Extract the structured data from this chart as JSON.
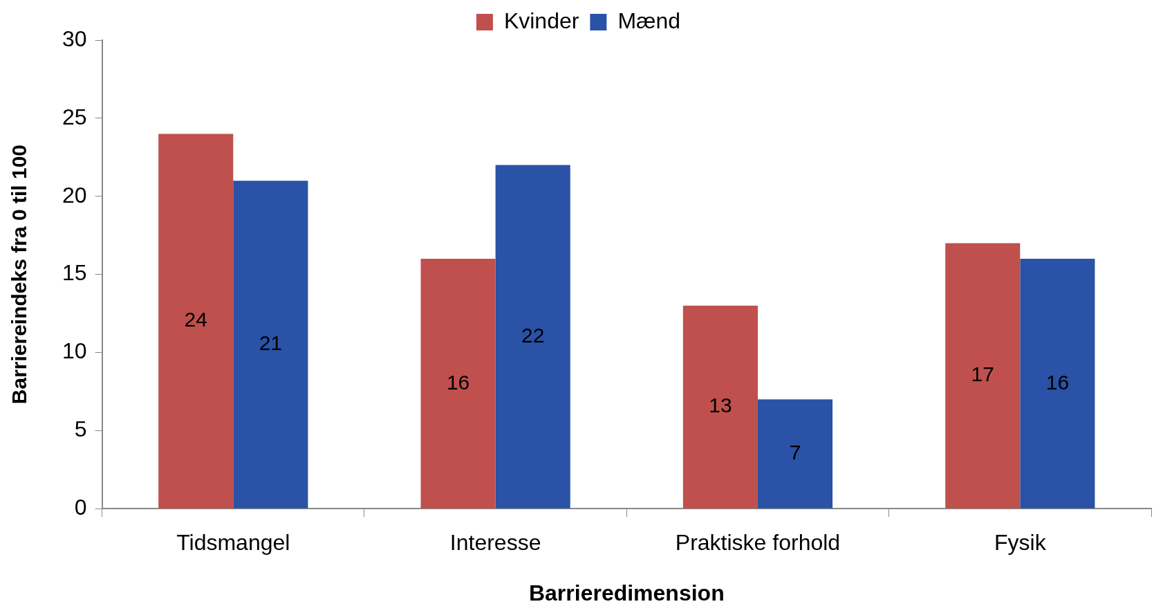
{
  "chart_data": {
    "type": "bar",
    "xlabel": "Barrieredimension",
    "ylabel": "Barriereindeks fra 0 til 100",
    "categories": [
      "Tidsmangel",
      "Interesse",
      "Praktiske forhold",
      "Fysik"
    ],
    "series": [
      {
        "name": "Kvinder",
        "color": "#c0504d",
        "values": [
          24,
          16,
          13,
          17
        ]
      },
      {
        "name": "Mænd",
        "color": "#2a52a6",
        "values": [
          21,
          22,
          7,
          16
        ]
      }
    ],
    "ylim": [
      0,
      30
    ],
    "yticks": [
      0,
      5,
      10,
      15,
      20,
      25,
      30
    ],
    "grid": false,
    "legend": "top",
    "data_labels": true
  }
}
